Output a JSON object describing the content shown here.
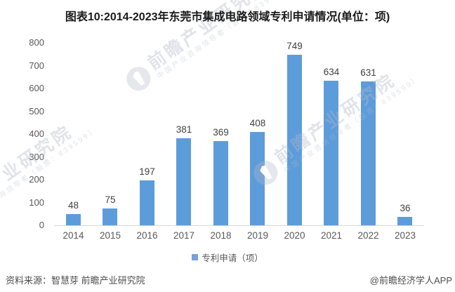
{
  "title": "图表10:2014-2023年东莞市集成电路领域专利申请情况(单位：项)",
  "chart_data": {
    "type": "bar",
    "title": "图表10:2014-2023年东莞市集成电路领域专利申请情况(单位：项)",
    "categories": [
      "2014",
      "2015",
      "2016",
      "2017",
      "2018",
      "2019",
      "2020",
      "2021",
      "2022",
      "2023"
    ],
    "series": [
      {
        "name": "专利申请（项）",
        "values": [
          48,
          75,
          197,
          381,
          369,
          408,
          749,
          634,
          631,
          36
        ]
      }
    ],
    "xlabel": "",
    "ylabel": "",
    "ylim": [
      0,
      800
    ],
    "yticks": [
      0,
      100,
      200,
      300,
      400,
      500,
      600,
      700,
      800
    ],
    "grid": false,
    "legend_position": "bottom",
    "bar_color": "#5D9CDB",
    "data_labels": true
  },
  "legend": {
    "label": "专利申请（项）",
    "swatch_color": "#74A3DC"
  },
  "footer": {
    "source": "资料来源：智慧芽 前瞻产业研究院",
    "credit": "@前瞻经济学人APP"
  },
  "watermark": {
    "main": "前瞻产业研究院",
    "sub": "中国产业咨询领导者（股票：839599）"
  }
}
